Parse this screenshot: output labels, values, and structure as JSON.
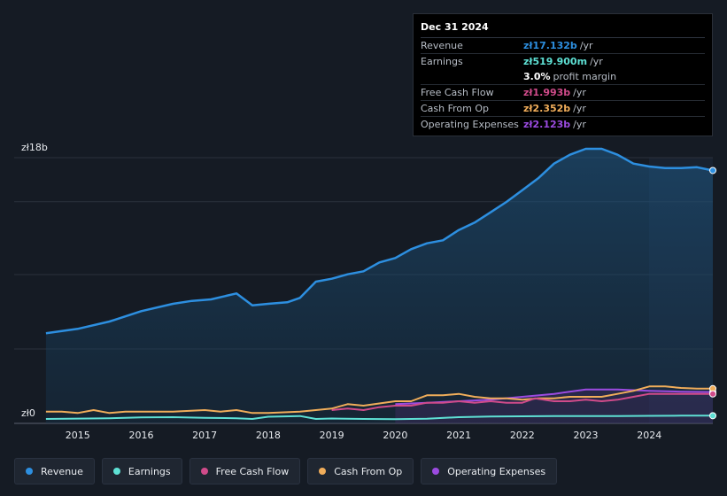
{
  "chart_data": {
    "type": "area",
    "currency_prefix": "zł",
    "ylim": [
      0,
      18
    ],
    "y_ticks": [
      {
        "value": 18,
        "label": "zł18b"
      },
      {
        "value": 0,
        "label": "zł0"
      }
    ],
    "x_ticks": [
      "2015",
      "2016",
      "2017",
      "2018",
      "2019",
      "2020",
      "2021",
      "2022",
      "2023",
      "2024"
    ],
    "x_range": [
      2014.5,
      2025.0
    ],
    "forecast_start": 2024.0,
    "series": [
      {
        "name": "Revenue",
        "color": "#2d8fe0",
        "x": [
          2014.5,
          2015.0,
          2015.5,
          2016.0,
          2016.5,
          2016.8,
          2017.1,
          2017.5,
          2017.75,
          2018.0,
          2018.3,
          2018.5,
          2018.75,
          2019.0,
          2019.25,
          2019.5,
          2019.75,
          2020.0,
          2020.25,
          2020.5,
          2020.75,
          2021.0,
          2021.25,
          2021.5,
          2021.75,
          2022.0,
          2022.25,
          2022.5,
          2022.75,
          2023.0,
          2023.25,
          2023.5,
          2023.75,
          2024.0,
          2024.25,
          2024.5,
          2024.75,
          2025.0
        ],
        "values": [
          6.1,
          6.4,
          6.9,
          7.6,
          8.1,
          8.3,
          8.4,
          8.8,
          8.0,
          8.1,
          8.2,
          8.5,
          9.6,
          9.8,
          10.1,
          10.3,
          10.9,
          11.2,
          11.8,
          12.2,
          12.4,
          13.1,
          13.6,
          14.3,
          15.0,
          15.8,
          16.6,
          17.6,
          18.2,
          18.6,
          18.6,
          18.2,
          17.6,
          17.4,
          17.3,
          17.3,
          17.35,
          17.132
        ]
      },
      {
        "name": "Earnings",
        "color": "#5ee0d4",
        "x": [
          2014.5,
          2015.5,
          2016.0,
          2016.5,
          2017.0,
          2017.5,
          2017.75,
          2018.0,
          2018.5,
          2018.75,
          2019.0,
          2019.5,
          2020.0,
          2020.5,
          2021.0,
          2021.5,
          2022.0,
          2022.5,
          2023.0,
          2023.5,
          2024.0,
          2024.5,
          2025.0
        ],
        "values": [
          0.3,
          0.35,
          0.4,
          0.42,
          0.38,
          0.35,
          0.3,
          0.45,
          0.5,
          0.3,
          0.33,
          0.3,
          0.28,
          0.32,
          0.42,
          0.46,
          0.48,
          0.5,
          0.5,
          0.5,
          0.51,
          0.52,
          0.5199
        ]
      },
      {
        "name": "Free Cash Flow",
        "color": "#d04b8a",
        "x": [
          2019.0,
          2019.25,
          2019.5,
          2019.75,
          2020.0,
          2020.25,
          2020.5,
          2020.75,
          2021.0,
          2021.25,
          2021.5,
          2021.75,
          2022.0,
          2022.2,
          2022.5,
          2022.75,
          2023.0,
          2023.25,
          2023.5,
          2023.75,
          2024.0,
          2024.5,
          2025.0
        ],
        "values": [
          0.9,
          1.0,
          0.9,
          1.1,
          1.2,
          1.2,
          1.4,
          1.4,
          1.5,
          1.4,
          1.5,
          1.4,
          1.4,
          1.7,
          1.5,
          1.5,
          1.6,
          1.5,
          1.6,
          1.8,
          2.0,
          2.0,
          1.993
        ]
      },
      {
        "name": "Cash From Op",
        "color": "#f0ad5a",
        "x": [
          2014.5,
          2014.75,
          2015.0,
          2015.25,
          2015.5,
          2015.75,
          2016.0,
          2016.5,
          2017.0,
          2017.25,
          2017.5,
          2017.75,
          2018.0,
          2018.5,
          2019.0,
          2019.25,
          2019.5,
          2020.0,
          2020.25,
          2020.5,
          2020.75,
          2021.0,
          2021.25,
          2021.5,
          2021.75,
          2022.0,
          2022.25,
          2022.5,
          2022.75,
          2023.0,
          2023.25,
          2023.5,
          2023.75,
          2024.0,
          2024.25,
          2024.5,
          2024.75,
          2025.0
        ],
        "values": [
          0.8,
          0.8,
          0.7,
          0.9,
          0.7,
          0.8,
          0.8,
          0.8,
          0.9,
          0.8,
          0.9,
          0.7,
          0.7,
          0.8,
          1.0,
          1.3,
          1.2,
          1.5,
          1.5,
          1.9,
          1.9,
          2.0,
          1.8,
          1.7,
          1.7,
          1.6,
          1.7,
          1.7,
          1.8,
          1.8,
          1.8,
          2.0,
          2.2,
          2.5,
          2.5,
          2.4,
          2.35,
          2.352
        ]
      },
      {
        "name": "Operating Expenses",
        "color": "#9b4be0",
        "x": [
          2020.0,
          2020.5,
          2021.0,
          2021.5,
          2022.0,
          2022.5,
          2023.0,
          2023.5,
          2024.0,
          2024.5,
          2025.0
        ],
        "values": [
          1.3,
          1.4,
          1.5,
          1.6,
          1.8,
          2.0,
          2.3,
          2.3,
          2.2,
          2.15,
          2.123
        ]
      }
    ]
  },
  "tooltip": {
    "date": "Dec 31 2024",
    "rows": [
      {
        "label": "Revenue",
        "value": "zł17.132b",
        "unit": "/yr",
        "color": "#2d8fe0"
      },
      {
        "label": "Earnings",
        "value": "zł519.900m",
        "unit": "/yr",
        "color": "#5ee0d4"
      },
      {
        "label": "",
        "value": "3.0%",
        "unit": "profit margin",
        "color": "#ffffff"
      },
      {
        "label": "Free Cash Flow",
        "value": "zł1.993b",
        "unit": "/yr",
        "color": "#d04b8a"
      },
      {
        "label": "Cash From Op",
        "value": "zł2.352b",
        "unit": "/yr",
        "color": "#f0ad5a"
      },
      {
        "label": "Operating Expenses",
        "value": "zł2.123b",
        "unit": "/yr",
        "color": "#9b4be0"
      }
    ]
  },
  "legend": [
    {
      "label": "Revenue",
      "color": "#2d8fe0"
    },
    {
      "label": "Earnings",
      "color": "#5ee0d4"
    },
    {
      "label": "Free Cash Flow",
      "color": "#d04b8a"
    },
    {
      "label": "Cash From Op",
      "color": "#f0ad5a"
    },
    {
      "label": "Operating Expenses",
      "color": "#9b4be0"
    }
  ]
}
